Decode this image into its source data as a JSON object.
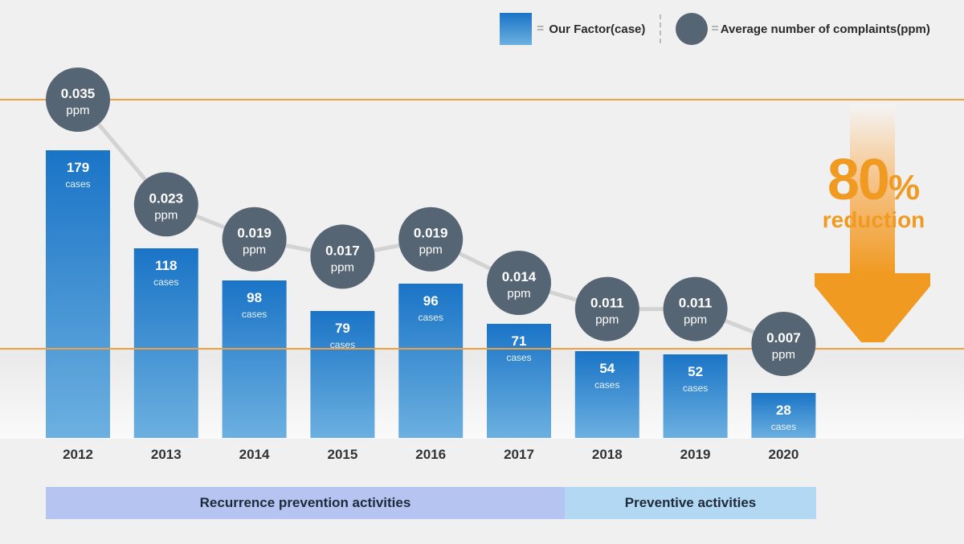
{
  "legend": {
    "bar_label": "Our Factor(case)",
    "line_label": "Average number of complaints(ppm)",
    "equals": "="
  },
  "reduction": {
    "value": "80",
    "percent": "%",
    "label": "reduction"
  },
  "phases": [
    {
      "label": "Recurrence prevention activities",
      "color": "#b6c4f2"
    },
    {
      "label": "Preventive activities",
      "color": "#b3d8f3"
    }
  ],
  "colors": {
    "bar_top": "#1a74c6",
    "bar_bottom": "#6cb0e0",
    "circle": "#566574",
    "line": "#d3d3d3",
    "reference_line": "#f0a040",
    "accent": "#f09a22"
  },
  "chart_data": {
    "type": "bar",
    "categories": [
      "2012",
      "2013",
      "2014",
      "2015",
      "2016",
      "2017",
      "2018",
      "2019",
      "2020"
    ],
    "series": [
      {
        "name": "Our Factor(case)",
        "type": "bar",
        "unit": "cases",
        "values": [
          179,
          118,
          98,
          79,
          96,
          71,
          54,
          52,
          28
        ]
      },
      {
        "name": "Average number of complaints(ppm)",
        "type": "line",
        "unit": "ppm",
        "values": [
          0.035,
          0.023,
          0.019,
          0.017,
          0.019,
          0.014,
          0.011,
          0.011,
          0.007
        ],
        "labels": [
          "0.035",
          "0.023",
          "0.019",
          "0.017",
          "0.019",
          "0.014",
          "0.011",
          "0.011",
          "0.007"
        ]
      }
    ],
    "bar_unit_label": "cases",
    "line_unit_label": "ppm",
    "grid": false
  }
}
